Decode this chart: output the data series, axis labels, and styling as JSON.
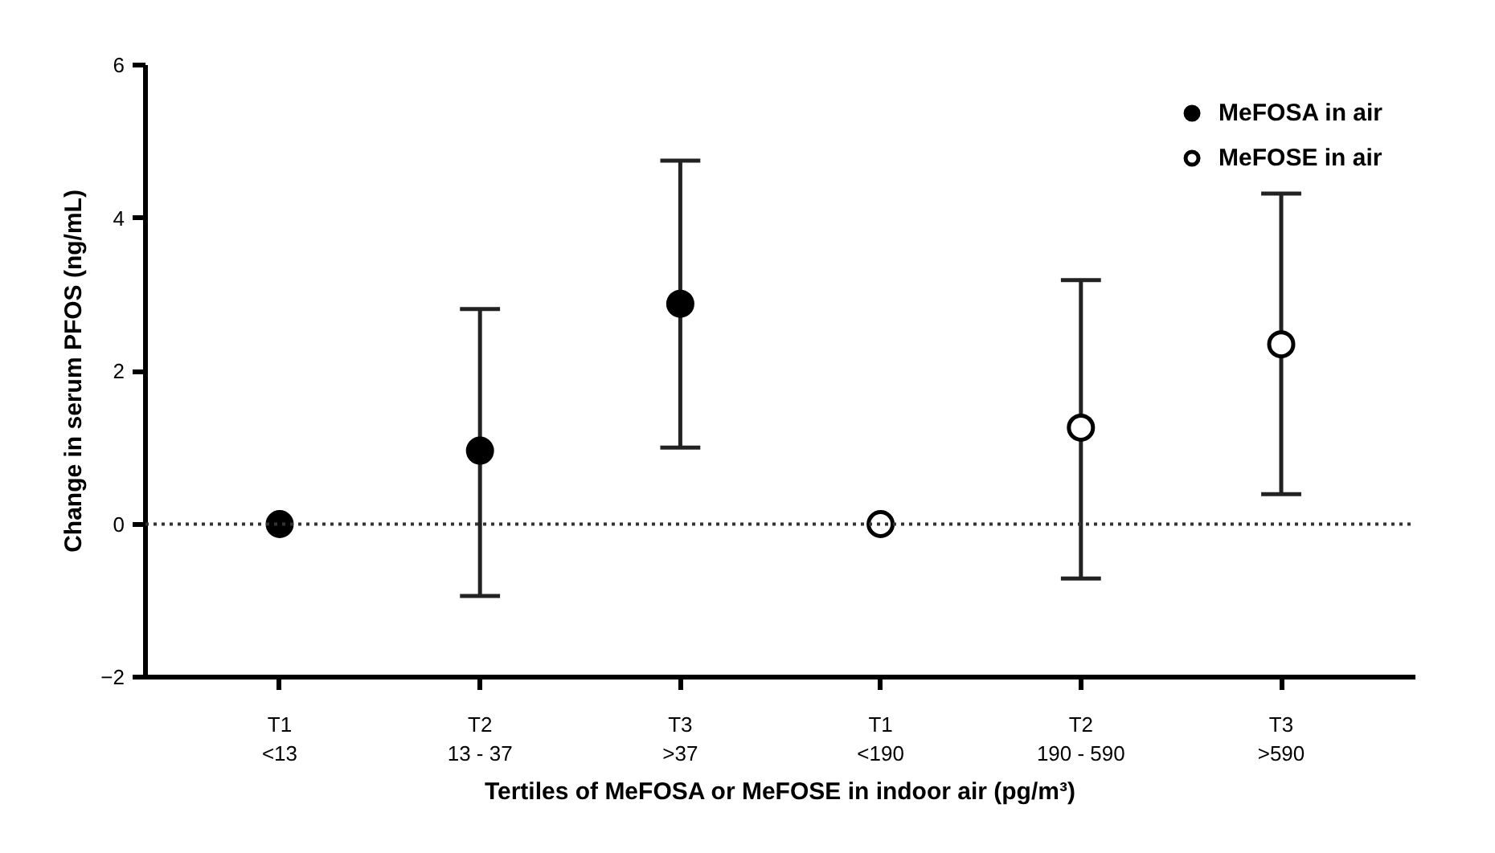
{
  "chart_data": {
    "type": "scatter",
    "categories": [
      "T1\n<13",
      "T2\n13 - 37",
      "T3\n>37",
      "T1\n<190",
      "T2\n190 - 590",
      "T3\n>590"
    ],
    "series": [
      {
        "name": "MeFOSA in air",
        "color": "#000000",
        "values": [
          0,
          0.96,
          2.88,
          null,
          null,
          null
        ],
        "errors": [
          null,
          [
            -0.94,
            2.81
          ],
          [
            1.0,
            4.75
          ],
          null,
          null,
          null
        ]
      },
      {
        "name": "MeFOSE in air",
        "color": "#ffffff",
        "values": [
          null,
          null,
          null,
          0,
          1.26,
          2.35
        ],
        "errors": [
          null,
          null,
          null,
          null,
          [
            -0.71,
            3.19
          ],
          [
            0.39,
            4.32
          ]
        ]
      }
    ],
    "ylabel": "Change in serum PFOS (ng/mL)",
    "xlabel": "Tertiles of MeFOSA or MeFOSE in indoor air (pg/m³)",
    "ylim": [
      -2,
      6
    ],
    "yticks": [
      -2,
      0,
      2,
      4,
      6
    ],
    "ref_lines": [
      {
        "axis": "y",
        "value": 0,
        "line_style": "dotted"
      }
    ],
    "marker": "circle",
    "legend": "top right",
    "grid": false
  }
}
